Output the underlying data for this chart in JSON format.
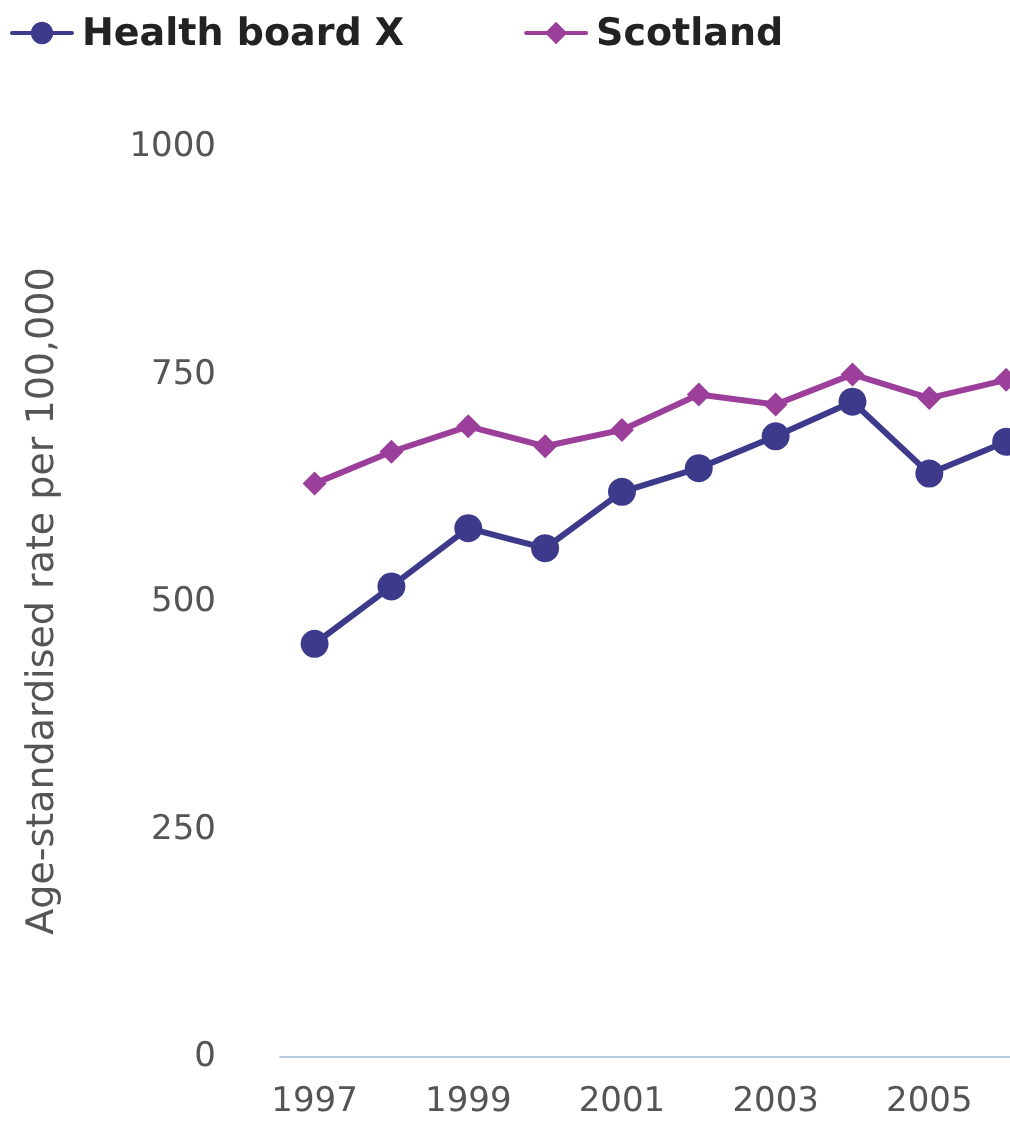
{
  "chart_data": {
    "type": "line",
    "ylabel": "Age-standardised rate per 100,000",
    "x": [
      1997,
      1998,
      1999,
      2000,
      2001,
      2002,
      2003,
      2004,
      2005,
      2006
    ],
    "series": [
      {
        "name": "Health board X",
        "color": "#3d3a8c",
        "marker": "circle",
        "values": [
          453,
          516,
          580,
          558,
          620,
          646,
          681,
          719,
          640,
          675
        ]
      },
      {
        "name": "Scotland",
        "color": "#9b3f9b",
        "marker": "diamond",
        "values": [
          629,
          664,
          692,
          670,
          688,
          727,
          716,
          749,
          723,
          743
        ]
      }
    ],
    "xlim": [
      1996.55,
      2006.05
    ],
    "xticks": [
      1997,
      1999,
      2001,
      2003,
      2005
    ],
    "ylim": [
      0,
      1000
    ],
    "yticks": [
      0,
      250,
      500,
      750,
      1000
    ],
    "grid": false,
    "legend": "top left",
    "line_style": "solid"
  }
}
